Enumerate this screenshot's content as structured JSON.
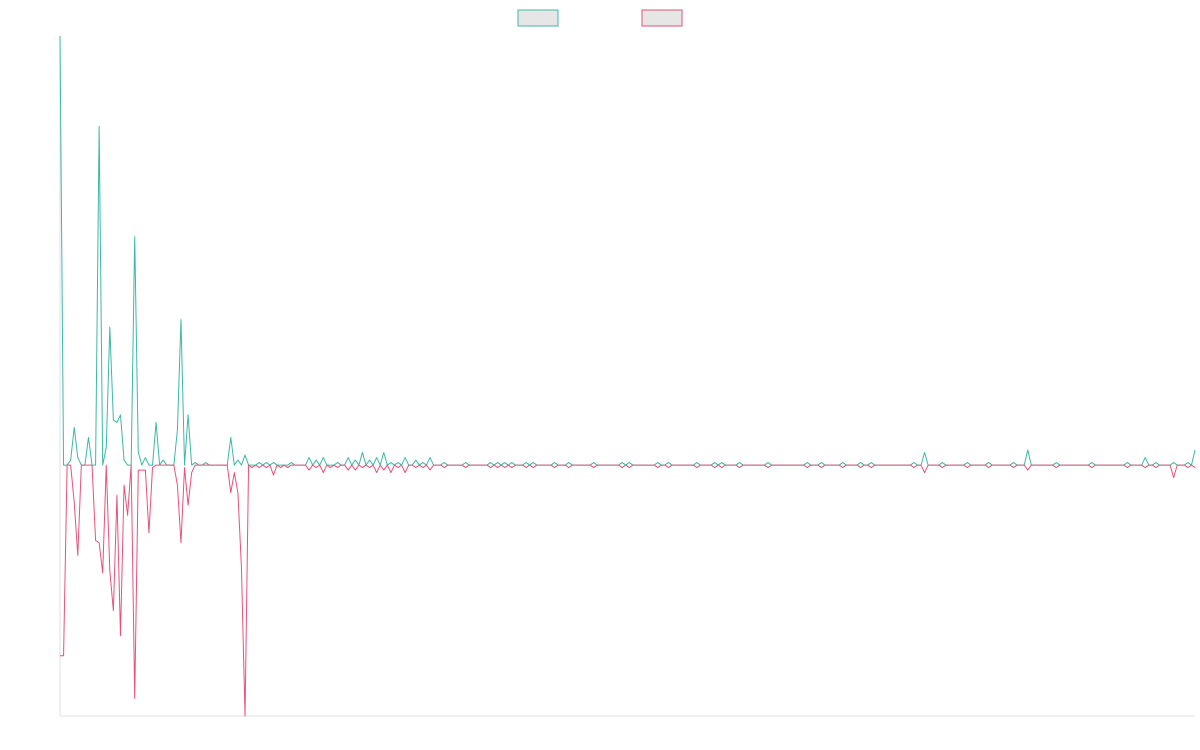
{
  "colors": {
    "background": "#ffffff",
    "axis": "#e0e0e0",
    "legend_box_fill": "#e6e6e6"
  },
  "chart_data": {
    "type": "line",
    "title": "",
    "xlabel": "",
    "ylabel": "",
    "grid": false,
    "legend": "top-center",
    "x_count": 320,
    "ylim": [
      -100,
      171
    ],
    "series": [
      {
        "name": "",
        "color": "#3cb8a8",
        "sparse": [
          [
            0,
            171
          ],
          [
            3,
            2
          ],
          [
            4,
            15
          ],
          [
            5,
            3
          ],
          [
            8,
            11
          ],
          [
            11,
            135
          ],
          [
            13,
            7
          ],
          [
            14,
            55
          ],
          [
            15,
            18
          ],
          [
            16,
            17
          ],
          [
            17,
            20
          ],
          [
            18,
            2
          ],
          [
            21,
            91
          ],
          [
            22,
            5
          ],
          [
            24,
            3
          ],
          [
            27,
            17
          ],
          [
            29,
            2
          ],
          [
            33,
            14
          ],
          [
            34,
            58
          ],
          [
            36,
            20
          ],
          [
            38,
            1
          ],
          [
            41,
            1
          ],
          [
            48,
            11
          ],
          [
            50,
            2
          ],
          [
            52,
            4
          ],
          [
            56,
            1
          ],
          [
            58,
            1
          ],
          [
            60,
            1
          ],
          [
            65,
            1
          ],
          [
            70,
            3
          ],
          [
            72,
            2
          ],
          [
            74,
            3
          ],
          [
            78,
            1
          ],
          [
            81,
            3
          ],
          [
            83,
            2
          ],
          [
            85,
            5
          ],
          [
            87,
            2
          ],
          [
            89,
            3
          ],
          [
            91,
            5
          ],
          [
            93,
            1
          ],
          [
            95,
            1
          ],
          [
            97,
            3
          ],
          [
            100,
            2
          ],
          [
            102,
            1
          ],
          [
            104,
            3
          ],
          [
            108,
            1
          ],
          [
            114,
            1
          ],
          [
            121,
            1
          ],
          [
            123,
            1
          ],
          [
            125,
            1
          ],
          [
            127,
            1
          ],
          [
            131,
            1
          ],
          [
            133,
            1
          ],
          [
            139,
            1
          ],
          [
            143,
            1
          ],
          [
            150,
            1
          ],
          [
            158,
            1
          ],
          [
            160,
            1
          ],
          [
            168,
            1
          ],
          [
            171,
            1
          ],
          [
            179,
            1
          ],
          [
            184,
            1
          ],
          [
            186,
            1
          ],
          [
            191,
            1
          ],
          [
            199,
            1
          ],
          [
            210,
            1
          ],
          [
            214,
            1
          ],
          [
            220,
            1
          ],
          [
            225,
            1
          ],
          [
            228,
            1
          ],
          [
            240,
            1
          ],
          [
            243,
            5
          ],
          [
            248,
            1
          ],
          [
            255,
            1
          ],
          [
            261,
            1
          ],
          [
            268,
            1
          ],
          [
            272,
            6
          ],
          [
            280,
            1
          ],
          [
            290,
            1
          ],
          [
            300,
            1
          ],
          [
            305,
            3
          ],
          [
            308,
            1
          ],
          [
            313,
            1
          ],
          [
            317,
            1
          ],
          [
            319,
            6
          ]
        ]
      },
      {
        "name": "",
        "color": "#e8527a",
        "sparse": [
          [
            0,
            -76
          ],
          [
            1,
            -76
          ],
          [
            2,
            0
          ],
          [
            3,
            0
          ],
          [
            4,
            -15
          ],
          [
            5,
            -36
          ],
          [
            6,
            0
          ],
          [
            7,
            0
          ],
          [
            8,
            0
          ],
          [
            9,
            0
          ],
          [
            10,
            -30
          ],
          [
            11,
            -31
          ],
          [
            12,
            -43
          ],
          [
            13,
            0
          ],
          [
            14,
            -42
          ],
          [
            15,
            -58
          ],
          [
            16,
            -12
          ],
          [
            17,
            -68
          ],
          [
            18,
            -8
          ],
          [
            19,
            -20
          ],
          [
            20,
            0
          ],
          [
            21,
            -93
          ],
          [
            22,
            -2
          ],
          [
            23,
            -2
          ],
          [
            24,
            -2
          ],
          [
            25,
            -27
          ],
          [
            26,
            -1
          ],
          [
            33,
            -8
          ],
          [
            34,
            -31
          ],
          [
            35,
            -1
          ],
          [
            36,
            -16
          ],
          [
            37,
            -3
          ],
          [
            48,
            -11
          ],
          [
            49,
            -3
          ],
          [
            50,
            -11
          ],
          [
            51,
            -41
          ],
          [
            52,
            -100
          ],
          [
            54,
            -1
          ],
          [
            56,
            -1
          ],
          [
            58,
            -1
          ],
          [
            60,
            -4
          ],
          [
            62,
            -1
          ],
          [
            64,
            -1
          ],
          [
            70,
            -2
          ],
          [
            72,
            -1
          ],
          [
            74,
            -3
          ],
          [
            76,
            -1
          ],
          [
            78,
            -1
          ],
          [
            81,
            -2
          ],
          [
            83,
            -2
          ],
          [
            85,
            -1
          ],
          [
            87,
            -1
          ],
          [
            89,
            -3
          ],
          [
            91,
            -2
          ],
          [
            93,
            -3
          ],
          [
            95,
            -1
          ],
          [
            97,
            -3
          ],
          [
            100,
            -1
          ],
          [
            102,
            -1
          ],
          [
            104,
            -2
          ],
          [
            108,
            -1
          ],
          [
            114,
            -1
          ],
          [
            121,
            -1
          ],
          [
            123,
            -1
          ],
          [
            125,
            -1
          ],
          [
            127,
            -1
          ],
          [
            131,
            -1
          ],
          [
            133,
            -1
          ],
          [
            139,
            -1
          ],
          [
            143,
            -1
          ],
          [
            150,
            -1
          ],
          [
            158,
            -1
          ],
          [
            160,
            -1
          ],
          [
            168,
            -1
          ],
          [
            171,
            -1
          ],
          [
            179,
            -1
          ],
          [
            184,
            -1
          ],
          [
            186,
            -1
          ],
          [
            191,
            -1
          ],
          [
            199,
            -1
          ],
          [
            210,
            -1
          ],
          [
            214,
            -1
          ],
          [
            220,
            -1
          ],
          [
            225,
            -1
          ],
          [
            228,
            -1
          ],
          [
            240,
            -1
          ],
          [
            243,
            -3
          ],
          [
            248,
            -1
          ],
          [
            255,
            -1
          ],
          [
            261,
            -1
          ],
          [
            268,
            -1
          ],
          [
            272,
            -2
          ],
          [
            280,
            -1
          ],
          [
            290,
            -1
          ],
          [
            300,
            -1
          ],
          [
            305,
            -1
          ],
          [
            308,
            -1
          ],
          [
            313,
            -5
          ],
          [
            317,
            -1
          ],
          [
            319,
            -1
          ]
        ]
      }
    ]
  }
}
